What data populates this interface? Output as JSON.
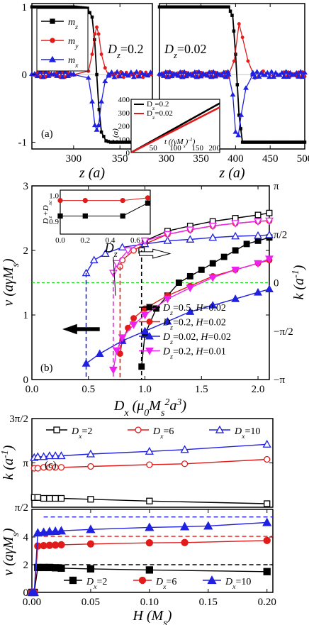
{
  "chart_data": [
    {
      "panel": "(a)",
      "type": "line",
      "ylabel": "",
      "xlabel": "z (a)",
      "ylim": [
        -1.1,
        1.05
      ],
      "sub_panels": [
        {
          "annotation": "D_z=0.2",
          "xlim": [
            255,
            385
          ],
          "xticks": [
            300,
            350
          ],
          "series": [
            {
              "name": "m_z",
              "color": "#000000",
              "x": [
                255,
                300,
                315,
                320,
                323,
                325,
                327,
                330,
                335,
                340,
                385
              ],
              "y": [
                1,
                1,
                0.98,
                0.85,
                0.45,
                0,
                -0.45,
                -0.85,
                -0.98,
                -1,
                -1
              ]
            },
            {
              "name": "m_y",
              "color": "#e11a1a",
              "x": [
                255,
                300,
                316,
                320,
                323,
                325,
                327,
                330,
                334,
                338,
                342,
                385
              ],
              "y": [
                0,
                0,
                0.05,
                0.3,
                0.6,
                0.7,
                0.6,
                0.3,
                0.1,
                -0.02,
                0,
                0
              ]
            },
            {
              "name": "m_x",
              "color": "#2020e0",
              "x": [
                255,
                300,
                316,
                320,
                323,
                325,
                327,
                330,
                334,
                338,
                385
              ],
              "y": [
                0,
                0,
                -0.05,
                -0.4,
                -0.75,
                -0.82,
                -0.75,
                -0.4,
                -0.1,
                0,
                0
              ]
            }
          ]
        },
        {
          "annotation": "D_z=0.02",
          "xlim": [
            290,
            500
          ],
          "xticks": [
            300,
            350,
            400,
            450,
            500
          ],
          "series": [
            {
              "name": "m_z",
              "color": "#000000",
              "x": [
                290,
                390,
                396,
                400,
                405,
                410,
                500
              ],
              "y": [
                1,
                1,
                0.85,
                0.3,
                -0.6,
                -1,
                -1
              ]
            },
            {
              "name": "m_y",
              "color": "#e11a1a",
              "x": [
                290,
                390,
                398,
                405,
                410,
                418,
                428,
                440,
                455,
                470,
                500
              ],
              "y": [
                0,
                0,
                0.2,
                0.75,
                0.55,
                0.2,
                -0.05,
                0.05,
                -0.03,
                0.02,
                0
              ]
            },
            {
              "name": "m_x",
              "color": "#2020e0",
              "x": [
                290,
                390,
                396,
                400,
                404,
                408,
                415,
                425,
                500
              ],
              "y": [
                0,
                0,
                -0.3,
                -0.85,
                -0.9,
                -0.6,
                -0.2,
                0,
                0
              ]
            }
          ]
        }
      ],
      "inset": {
        "ylabel": "Z (a)",
        "xlabel": "t ((γM_s)^-1)",
        "xlim": [
          0,
          200
        ],
        "ylim": [
          0,
          400
        ],
        "xticks": [
          0,
          50,
          100,
          150,
          200
        ],
        "yticks": [
          0,
          100,
          200,
          300,
          400
        ],
        "series": [
          {
            "name": "D_z=0.2",
            "color": "#000000",
            "x": [
              0,
              200
            ],
            "y": [
              0,
              370
            ]
          },
          {
            "name": "D_z=0.02",
            "color": "#e11a1a",
            "x": [
              0,
              200
            ],
            "y": [
              0,
              340
            ]
          }
        ]
      }
    },
    {
      "panel": "(b)",
      "type": "line",
      "xlabel": "D_x (μ_0 M_s^2 a^3)",
      "ylabel": "v (aγM_s)",
      "ylabel_right": "k (a^-1)",
      "xlim": [
        0,
        2.1
      ],
      "ylim": [
        0,
        3
      ],
      "xticks": [
        0.0,
        0.5,
        1.0,
        1.5,
        2.0
      ],
      "yticks": [
        0,
        1,
        2,
        3
      ],
      "right_ticks": [
        "−π",
        "−π/2",
        "0",
        "π/2",
        "π"
      ],
      "legend_placement": "bottom-right",
      "series": [
        {
          "name": "D_z=0.5, H=0.02",
          "color": "#000000",
          "marker": "square",
          "v_x": [
            0.97,
            1.0,
            1.1,
            1.2,
            1.3,
            1.4,
            1.5,
            1.6,
            1.7,
            1.8,
            1.9,
            2.0,
            2.1
          ],
          "v": [
            0.2,
            0.7,
            1.1,
            1.3,
            1.5,
            1.6,
            1.7,
            1.8,
            1.9,
            2.0,
            2.1,
            2.15,
            2.2
          ],
          "k_x": [
            0.97,
            1.0,
            1.2,
            1.4,
            1.6,
            1.8,
            2.0,
            2.1
          ],
          "k": [
            2.0,
            2.15,
            2.3,
            2.38,
            2.45,
            2.5,
            2.55,
            2.58
          ]
        },
        {
          "name": "D_z=0.2, H=0.02",
          "color": "#e11a1a",
          "marker": "circle",
          "v_x": [
            0.78,
            0.8,
            0.85,
            0.9,
            1.0,
            1.2,
            1.4,
            1.6,
            1.8,
            2.0,
            2.1
          ],
          "v": [
            0.4,
            0.6,
            0.8,
            0.95,
            1.1,
            1.3,
            1.45,
            1.6,
            1.7,
            1.8,
            1.85
          ],
          "k_x": [
            0.78,
            0.8,
            0.9,
            1.0,
            1.2,
            1.4,
            1.6,
            1.8,
            2.0,
            2.1
          ],
          "k": [
            1.75,
            1.85,
            2.0,
            2.1,
            2.25,
            2.32,
            2.38,
            2.42,
            2.45,
            2.46
          ]
        },
        {
          "name": "D_z=0.02, H=0.02",
          "color": "#2020e0",
          "marker": "triangle",
          "v_x": [
            0.48,
            0.6,
            0.8,
            1.0,
            1.2,
            1.4,
            1.6,
            1.8,
            2.0,
            2.1
          ],
          "v": [
            0.25,
            0.4,
            0.6,
            0.75,
            0.9,
            1.05,
            1.15,
            1.25,
            1.35,
            1.4
          ],
          "k_x": [
            0.48,
            0.55,
            0.65,
            0.8,
            1.0,
            1.2,
            1.4,
            1.6,
            1.8,
            2.0,
            2.1
          ],
          "k": [
            1.65,
            1.85,
            1.95,
            2.05,
            2.1,
            2.15,
            2.17,
            2.2,
            2.22,
            2.23,
            2.24
          ]
        },
        {
          "name": "D_z=0.2, H=0.01",
          "color": "#ee22ee",
          "marker": "triangle-down",
          "v_x": [
            0.72,
            0.75,
            0.8,
            0.9,
            1.0,
            1.2,
            1.4,
            1.6,
            1.8,
            2.0,
            2.1
          ],
          "v": [
            0.15,
            0.45,
            0.65,
            0.85,
            1.0,
            1.25,
            1.42,
            1.58,
            1.7,
            1.8,
            1.87
          ],
          "k_x": [
            0.72,
            0.75,
            0.85,
            1.0,
            1.2,
            1.4,
            1.6,
            1.8,
            2.0,
            2.1
          ],
          "k": [
            1.65,
            1.8,
            2.0,
            2.15,
            2.25,
            2.32,
            2.38,
            2.42,
            2.45,
            2.46
          ]
        }
      ],
      "annotation": "D_z",
      "inset": {
        "ylabel": "D_z+D_xc",
        "xlim": [
          0,
          0.72
        ],
        "ylim": [
          0.85,
          1.02
        ],
        "xticks": [
          0.0,
          0.2,
          0.4,
          0.6
        ],
        "yticks": [
          0.9,
          1.0
        ],
        "series": [
          {
            "color": "#e11a1a",
            "x": [
              0.0,
              0.2,
              0.5,
              0.7
            ],
            "y": [
              0.98,
              0.98,
              0.98,
              0.99
            ]
          },
          {
            "color": "#000000",
            "x": [
              0.0,
              0.2,
              0.5,
              0.7
            ],
            "y": [
              0.92,
              0.92,
              0.92,
              0.97
            ]
          }
        ]
      }
    },
    {
      "panel": "(c)",
      "type": "line",
      "xlabel": "H (M_s)",
      "xlim": [
        0,
        0.205
      ],
      "xticks": [
        0.0,
        0.05,
        0.1,
        0.15,
        0.2
      ],
      "top": {
        "ylabel": "k (a^-1)",
        "yticks": [
          "π/2",
          "π",
          "3π/2"
        ],
        "ylim_over_pi": [
          0.5,
          1.5
        ],
        "series": [
          {
            "name": "D_x=2",
            "color": "#000000",
            "marker": "square-open",
            "x": [
              0.002,
              0.005,
              0.01,
              0.015,
              0.02,
              0.025,
              0.05,
              0.1,
              0.2
            ],
            "y_over_pi": [
              0.61,
              0.61,
              0.6,
              0.6,
              0.6,
              0.6,
              0.59,
              0.57,
              0.54
            ]
          },
          {
            "name": "D_x=6",
            "color": "#e11a1a",
            "marker": "circle-open",
            "x": [
              0.002,
              0.005,
              0.01,
              0.015,
              0.02,
              0.025,
              0.05,
              0.1,
              0.13,
              0.2
            ],
            "y_over_pi": [
              0.94,
              0.94,
              0.95,
              0.95,
              0.95,
              0.95,
              0.96,
              0.98,
              0.99,
              1.04
            ]
          },
          {
            "name": "D_x=10",
            "color": "#2020e0",
            "marker": "triangle-open",
            "x": [
              0.002,
              0.005,
              0.01,
              0.015,
              0.02,
              0.025,
              0.05,
              0.1,
              0.13,
              0.2
            ],
            "y_over_pi": [
              1.06,
              1.07,
              1.07,
              1.08,
              1.08,
              1.08,
              1.1,
              1.13,
              1.15,
              1.21
            ]
          }
        ]
      },
      "bottom": {
        "ylabel": "v (aγM_s)",
        "ylim": [
          0,
          6
        ],
        "yticks": [
          0,
          2,
          4
        ],
        "dashed_levels": [
          {
            "color": "#000000",
            "y": 2.0
          },
          {
            "color": "#e11a1a",
            "y": 4.05
          },
          {
            "color": "#2020e0",
            "y": 5.45
          }
        ],
        "series": [
          {
            "name": "D_x=2",
            "color": "#000000",
            "marker": "square",
            "x": [
              0.0,
              0.002,
              0.005,
              0.01,
              0.015,
              0.02,
              0.025,
              0.05,
              0.1,
              0.2
            ],
            "y": [
              0,
              0,
              1.8,
              1.8,
              1.8,
              1.78,
              1.75,
              1.7,
              1.62,
              1.5
            ]
          },
          {
            "name": "D_x=6",
            "color": "#e11a1a",
            "marker": "circle",
            "x": [
              0.0,
              0.002,
              0.005,
              0.01,
              0.015,
              0.02,
              0.025,
              0.05,
              0.1,
              0.13,
              0.2
            ],
            "y": [
              0,
              0,
              3.35,
              3.38,
              3.4,
              3.42,
              3.44,
              3.5,
              3.58,
              3.6,
              3.75
            ]
          },
          {
            "name": "D_x=10",
            "color": "#2020e0",
            "marker": "triangle",
            "x": [
              0.0,
              0.002,
              0.005,
              0.01,
              0.015,
              0.02,
              0.025,
              0.05,
              0.1,
              0.13,
              0.15,
              0.2
            ],
            "y": [
              0,
              0,
              4.3,
              4.35,
              4.4,
              4.42,
              4.45,
              4.55,
              4.7,
              4.75,
              4.8,
              5.05
            ]
          }
        ]
      }
    }
  ]
}
